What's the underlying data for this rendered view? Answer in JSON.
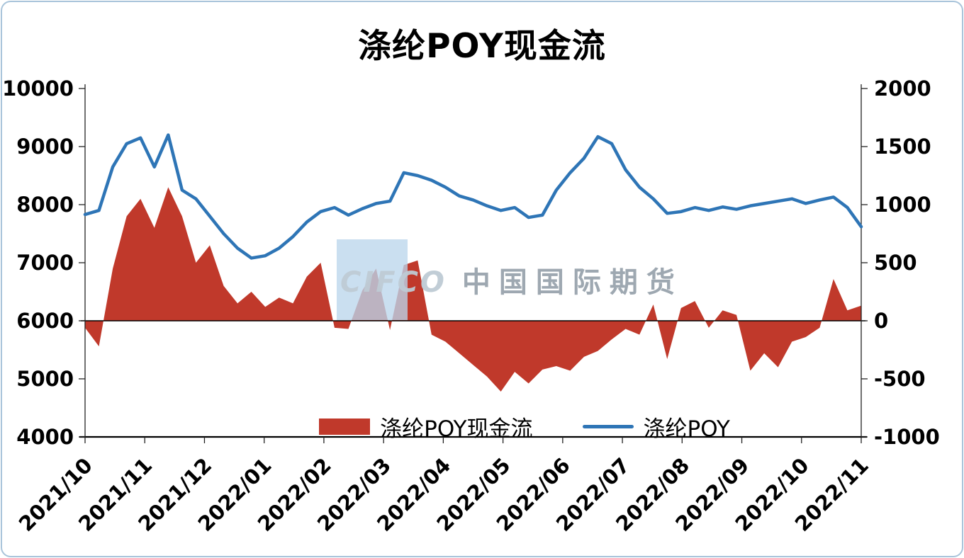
{
  "chart": {
    "title": "涤纶POY现金流",
    "watermark": {
      "logo": "CIFCO",
      "text": "中国国际期货"
    },
    "legend": [
      {
        "label": "涤纶POY现金流",
        "type": "area",
        "color": "#c0392b"
      },
      {
        "label": "涤纶POY",
        "type": "line",
        "color": "#2e75b6"
      }
    ]
  },
  "chart_data": {
    "type": "combo",
    "title": "涤纶POY现金流",
    "categories": [
      "2021/10",
      "2021/11",
      "2021/12",
      "2022/01",
      "2022/02",
      "2022/03",
      "2022/04",
      "2022/05",
      "2022/06",
      "2022/07",
      "2022/08",
      "2022/09",
      "2022/10",
      "2022/11"
    ],
    "left_axis": {
      "min": 4000,
      "max": 10000,
      "ticks": [
        10000,
        9000,
        8000,
        7000,
        6000,
        5000,
        4000
      ],
      "tick_labels": [
        "10000",
        "9000",
        "8000",
        "7000",
        "6000",
        "5000",
        "4000"
      ]
    },
    "right_axis": {
      "min": -1000,
      "max": 2000,
      "ticks": [
        2000,
        1500,
        1000,
        500,
        0,
        -500,
        -1000
      ],
      "tick_labels": [
        "2000",
        "1500",
        "1000",
        "500",
        "0",
        "-500",
        "-1000"
      ]
    },
    "baseline_right": 0,
    "grid": false,
    "legend_position": "bottom-inside",
    "series": [
      {
        "name": "涤纶POY现金流",
        "type": "area",
        "axis": "right",
        "color": "#c0392b",
        "values": [
          -60,
          -220,
          450,
          900,
          1050,
          800,
          1150,
          900,
          500,
          650,
          300,
          150,
          250,
          120,
          200,
          150,
          380,
          500,
          -60,
          -70,
          260,
          450,
          -80,
          480,
          520,
          -120,
          -180,
          -280,
          -380,
          -480,
          -610,
          -440,
          -540,
          -420,
          -390,
          -430,
          -310,
          -260,
          -160,
          -70,
          -120,
          140,
          -330,
          110,
          170,
          -60,
          90,
          50,
          -430,
          -280,
          -400,
          -180,
          -140,
          -60,
          360,
          90,
          130
        ]
      },
      {
        "name": "涤纶POY",
        "type": "line",
        "axis": "left",
        "color": "#2e75b6",
        "values": [
          7830,
          7900,
          8650,
          9050,
          9150,
          8650,
          9200,
          8250,
          8100,
          7800,
          7500,
          7250,
          7080,
          7120,
          7250,
          7450,
          7700,
          7880,
          7950,
          7820,
          7930,
          8020,
          8060,
          8550,
          8500,
          8420,
          8300,
          8150,
          8080,
          7980,
          7900,
          7950,
          7780,
          7820,
          8250,
          8550,
          8800,
          9170,
          9050,
          8600,
          8300,
          8100,
          7850,
          7880,
          7950,
          7900,
          7960,
          7920,
          7980,
          8020,
          8060,
          8100,
          8020,
          8080,
          8130,
          7950,
          7620
        ]
      }
    ]
  }
}
